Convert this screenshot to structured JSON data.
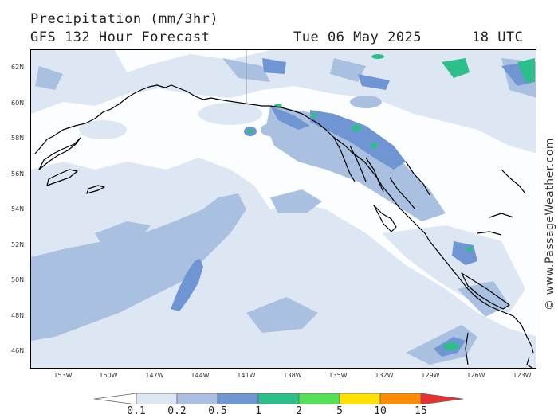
{
  "header": {
    "title": "Precipitation (mm/3hr)",
    "subtitle": "GFS 132 Hour Forecast",
    "date": "Tue 06 May 2025",
    "time": "18 UTC"
  },
  "map": {
    "latitude_labels": [
      "62N",
      "60N",
      "58N",
      "56N",
      "54N",
      "52N",
      "50N",
      "48N",
      "46N"
    ],
    "longitude_labels": [
      "153W",
      "150W",
      "147W",
      "144W",
      "141W",
      "138W",
      "135W",
      "132W",
      "129W",
      "126W",
      "123W"
    ],
    "watermark": "© www.PassageWeather.com"
  },
  "legend": {
    "thresholds": [
      "0.1",
      "0.2",
      "0.5",
      "1",
      "2",
      "5",
      "10",
      "15"
    ],
    "colors": [
      "#ffffff",
      "#dde6f3",
      "#a9c0e0",
      "#6f96d2",
      "#2dbf8a",
      "#55e055",
      "#ffe000",
      "#ff8c00",
      "#e83030"
    ]
  },
  "colors": {
    "light": "#dde6f3",
    "medium": "#a9c0e0",
    "heavy": "#6f96d2",
    "green": "#2dbf8a",
    "coast": "#000000"
  }
}
